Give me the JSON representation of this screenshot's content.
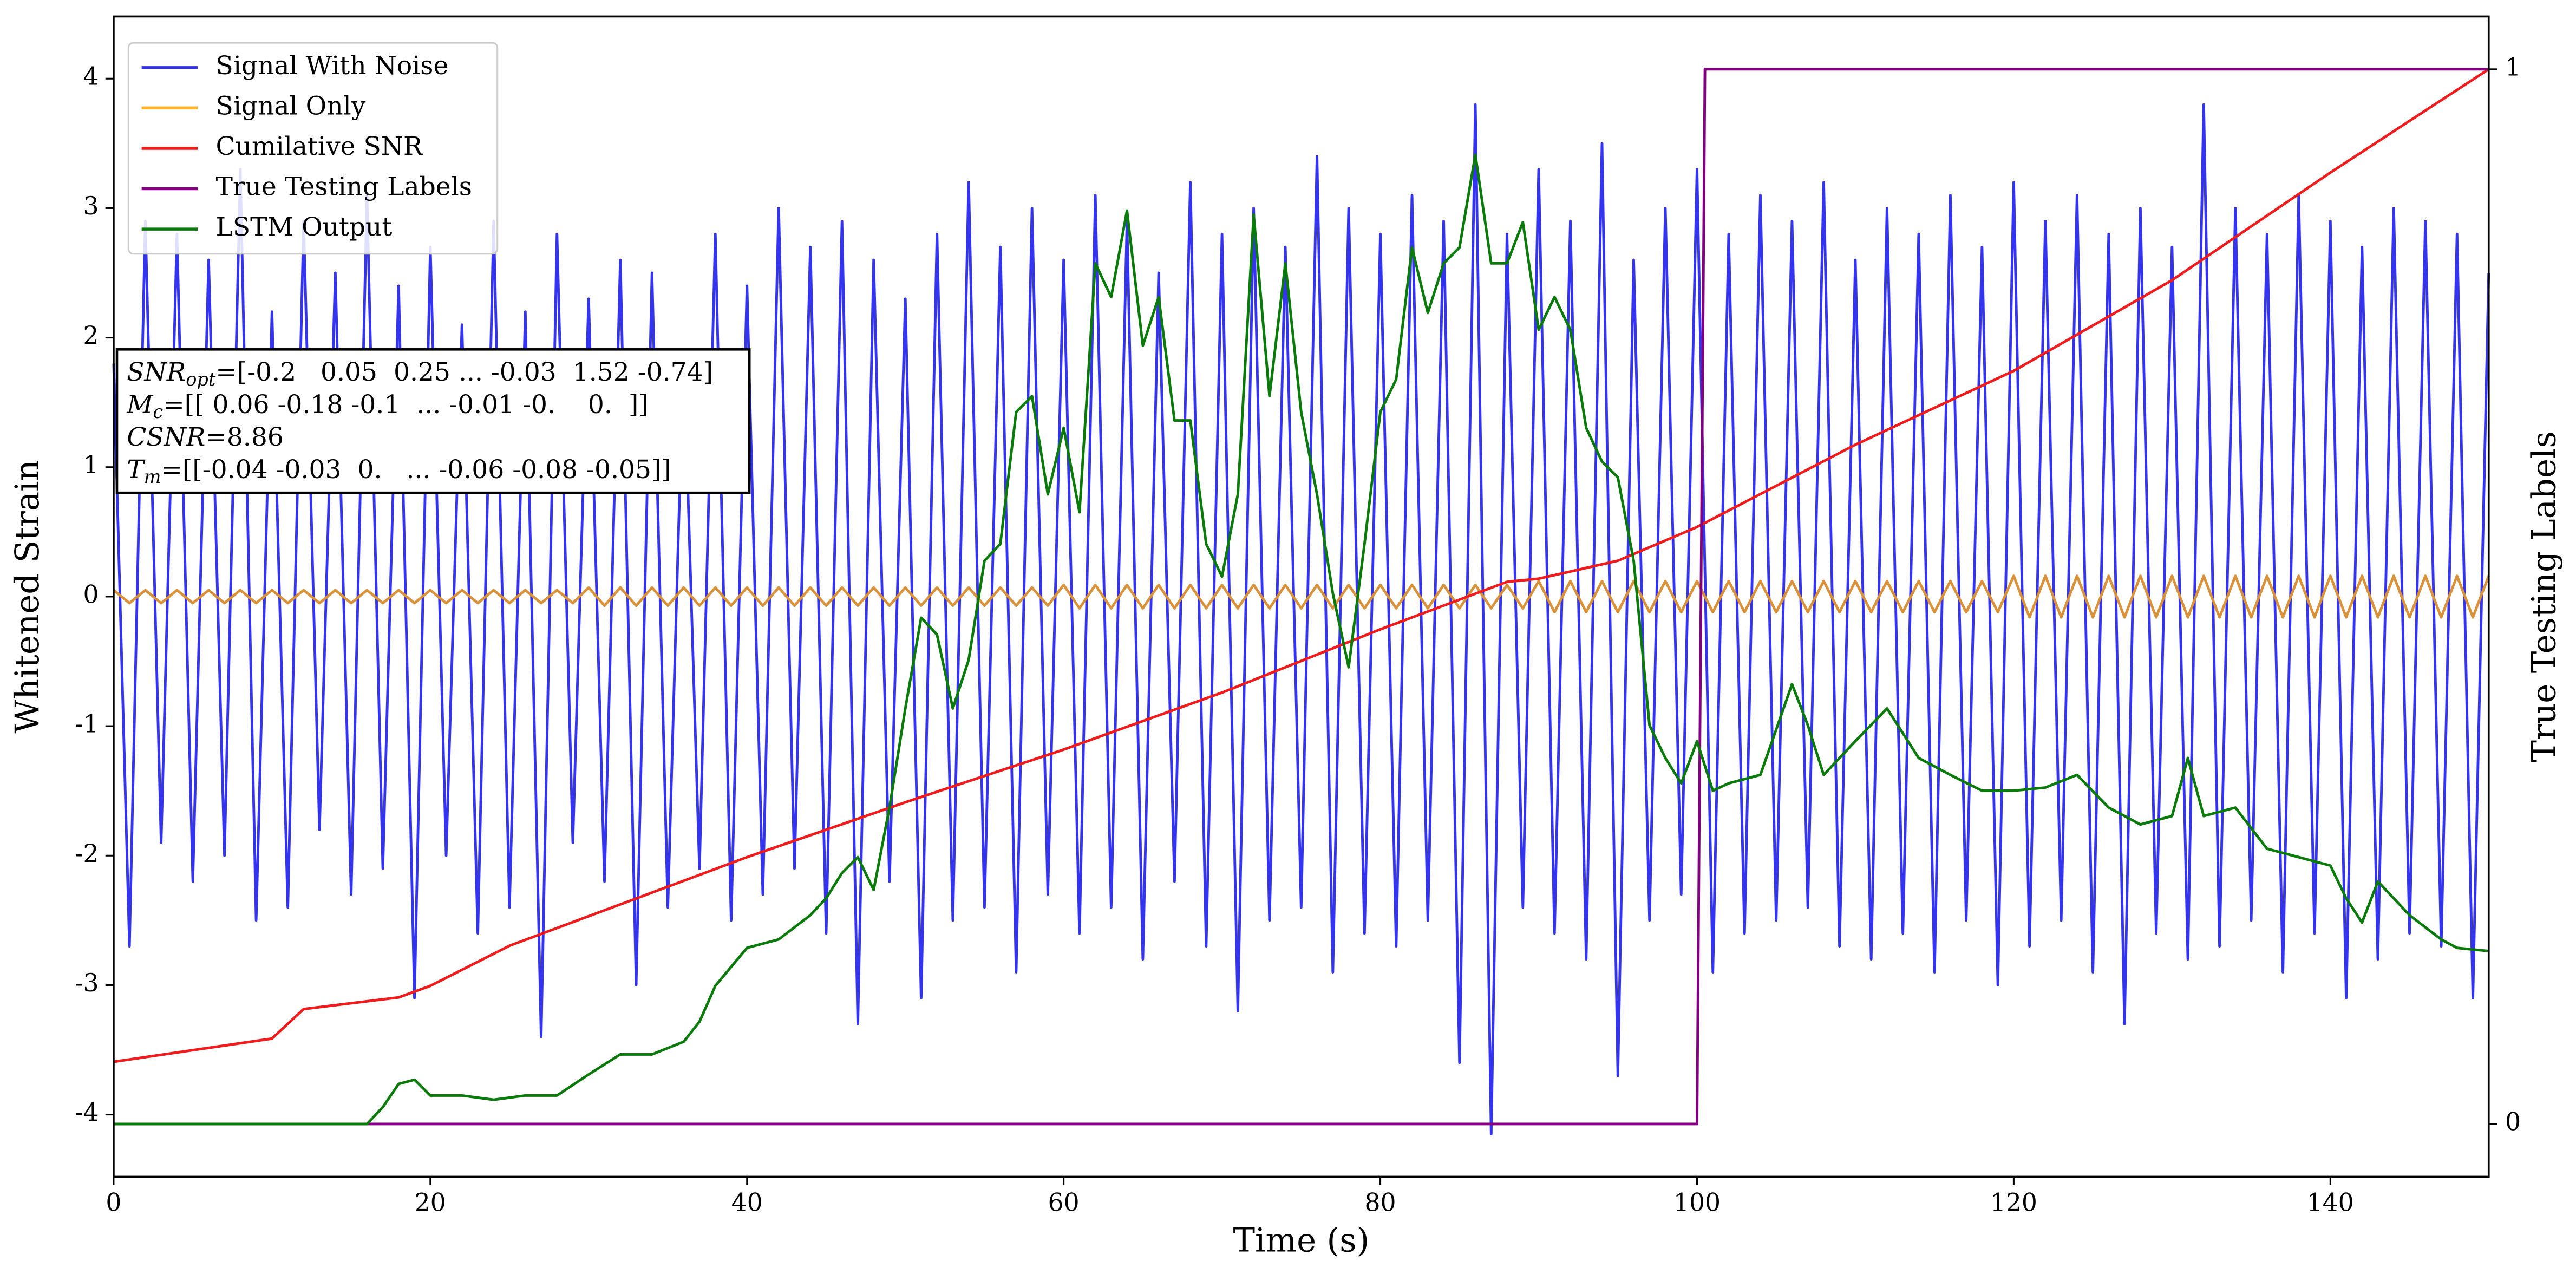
{
  "chart_data": {
    "type": "line",
    "xlabel": "Time (s)",
    "ylabel": "Whitened Strain",
    "y2label": "True Testing Labels",
    "xlim": [
      0,
      150
    ],
    "ylim": [
      -4.48,
      4.48
    ],
    "y2lim": [
      -0.05,
      1.05
    ],
    "xticks": [
      0,
      20,
      40,
      60,
      80,
      100,
      120,
      140
    ],
    "yticks": [
      -4,
      -3,
      -2,
      -1,
      0,
      1,
      2,
      3,
      4
    ],
    "y2ticks": [
      0,
      1
    ],
    "legend": "upper left",
    "x": [
      0,
      1,
      2,
      3,
      4,
      5,
      6,
      7,
      8,
      9,
      10,
      11,
      12,
      13,
      14,
      15,
      16,
      17,
      18,
      19,
      20,
      21,
      22,
      23,
      24,
      25,
      26,
      27,
      28,
      29,
      30,
      31,
      32,
      33,
      34,
      35,
      36,
      37,
      38,
      39,
      40,
      41,
      42,
      43,
      44,
      45,
      46,
      47,
      48,
      49,
      50,
      51,
      52,
      53,
      54,
      55,
      56,
      57,
      58,
      59,
      60,
      61,
      62,
      63,
      64,
      65,
      66,
      67,
      68,
      69,
      70,
      71,
      72,
      73,
      74,
      75,
      76,
      77,
      78,
      79,
      80,
      81,
      82,
      83,
      84,
      85,
      86,
      87,
      88,
      89,
      90,
      91,
      92,
      93,
      94,
      95,
      96,
      97,
      98,
      99,
      100,
      101,
      102,
      103,
      104,
      105,
      106,
      107,
      108,
      109,
      110,
      111,
      112,
      113,
      114,
      115,
      116,
      117,
      118,
      119,
      120,
      121,
      122,
      123,
      124,
      125,
      126,
      127,
      128,
      129,
      130,
      131,
      132,
      133,
      134,
      135,
      136,
      137,
      138,
      139,
      140,
      141,
      142,
      143,
      144,
      145,
      146,
      147,
      148,
      149,
      150
    ],
    "series": [
      {
        "name": "Signal With Noise",
        "color": "#3434ee",
        "legend_color": "#3434ee",
        "values": [
          1.8,
          -2.7,
          2.9,
          -1.9,
          2.8,
          -2.2,
          2.6,
          -2.0,
          3.3,
          -2.5,
          2.2,
          -2.4,
          2.9,
          -1.8,
          2.5,
          -2.3,
          3.1,
          -2.1,
          2.4,
          -3.1,
          2.7,
          -2.0,
          2.1,
          -2.6,
          2.9,
          -2.4,
          2.2,
          -3.4,
          2.8,
          -1.9,
          2.3,
          -2.2,
          2.6,
          -3.0,
          2.5,
          -2.4,
          1.9,
          -2.1,
          2.8,
          -2.5,
          2.4,
          -2.3,
          3.0,
          -2.1,
          2.7,
          -2.6,
          2.9,
          -3.3,
          2.6,
          -2.2,
          2.3,
          -3.1,
          2.8,
          -2.5,
          3.2,
          -2.4,
          2.7,
          -2.9,
          3.0,
          -2.3,
          2.6,
          -2.6,
          3.1,
          -2.4,
          2.9,
          -2.8,
          2.5,
          -2.2,
          3.2,
          -2.7,
          2.8,
          -3.2,
          3.0,
          -2.5,
          2.7,
          -2.4,
          3.4,
          -2.9,
          3.0,
          -2.6,
          2.8,
          -2.7,
          3.1,
          -2.5,
          2.9,
          -3.6,
          3.8,
          -4.15,
          2.8,
          -2.4,
          3.3,
          -2.6,
          2.9,
          -2.8,
          3.5,
          -3.7,
          2.6,
          -2.5,
          3.0,
          -2.3,
          3.3,
          -2.9,
          2.8,
          -2.6,
          3.1,
          -2.5,
          2.9,
          -2.4,
          3.2,
          -2.7,
          2.6,
          -2.8,
          3.0,
          -2.6,
          2.8,
          -2.9,
          3.1,
          -2.5,
          2.7,
          -3.0,
          3.2,
          -2.7,
          2.9,
          -2.5,
          3.1,
          -2.9,
          2.8,
          -3.3,
          3.0,
          -2.6,
          2.7,
          -2.8,
          3.8,
          -2.7,
          3.0,
          -2.5,
          2.8,
          -2.9,
          3.1,
          -2.6,
          2.9,
          -3.1,
          2.7,
          -2.8,
          3.0,
          -2.6,
          2.9,
          -2.7,
          2.8,
          -3.1,
          2.5
        ]
      },
      {
        "name": "Signal Only",
        "color": "#d9913a",
        "legend_color": "#ffb330",
        "values": [
          0.05,
          -0.05,
          0.05,
          -0.05,
          0.05,
          -0.05,
          0.05,
          -0.05,
          0.05,
          -0.05,
          0.05,
          -0.05,
          0.05,
          -0.05,
          0.05,
          -0.05,
          0.05,
          -0.05,
          0.05,
          -0.05,
          0.05,
          -0.05,
          0.05,
          -0.05,
          0.05,
          -0.05,
          0.05,
          -0.05,
          0.05,
          -0.05,
          0.07,
          -0.07,
          0.07,
          -0.07,
          0.07,
          -0.07,
          0.07,
          -0.07,
          0.07,
          -0.07,
          0.07,
          -0.07,
          0.07,
          -0.07,
          0.07,
          -0.07,
          0.07,
          -0.07,
          0.07,
          -0.07,
          0.07,
          -0.07,
          0.07,
          -0.07,
          0.07,
          -0.07,
          0.07,
          -0.07,
          0.07,
          -0.07,
          0.09,
          -0.09,
          0.09,
          -0.09,
          0.09,
          -0.09,
          0.09,
          -0.09,
          0.09,
          -0.09,
          0.09,
          -0.09,
          0.09,
          -0.09,
          0.09,
          -0.09,
          0.09,
          -0.09,
          0.09,
          -0.09,
          0.09,
          -0.09,
          0.09,
          -0.09,
          0.09,
          -0.09,
          0.09,
          -0.09,
          0.09,
          -0.09,
          0.12,
          -0.12,
          0.12,
          -0.12,
          0.12,
          -0.12,
          0.12,
          -0.12,
          0.12,
          -0.12,
          0.12,
          -0.12,
          0.12,
          -0.12,
          0.12,
          -0.12,
          0.12,
          -0.12,
          0.12,
          -0.12,
          0.12,
          -0.12,
          0.12,
          -0.12,
          0.12,
          -0.12,
          0.12,
          -0.12,
          0.12,
          -0.12,
          0.16,
          -0.16,
          0.16,
          -0.16,
          0.16,
          -0.16,
          0.16,
          -0.16,
          0.16,
          -0.16,
          0.16,
          -0.16,
          0.16,
          -0.16,
          0.16,
          -0.16,
          0.16,
          -0.16,
          0.16,
          -0.16,
          0.16,
          -0.16,
          0.16,
          -0.16,
          0.16,
          -0.16,
          0.16,
          -0.16,
          0.16,
          -0.16,
          0.16
        ]
      },
      {
        "name": "Cumilative SNR",
        "color": "#ee1c1c",
        "legend_color": "#ee1c1c",
        "axis": "y2",
        "x": [
          0,
          10,
          12,
          18,
          20,
          25,
          30,
          40,
          50,
          60,
          70,
          80,
          88,
          90,
          95,
          100,
          110,
          120,
          130,
          140,
          150
        ],
        "values": [
          0.059,
          0.081,
          0.109,
          0.12,
          0.131,
          0.169,
          0.197,
          0.253,
          0.305,
          0.355,
          0.409,
          0.469,
          0.514,
          0.517,
          0.534,
          0.566,
          0.644,
          0.714,
          0.8,
          0.902,
          1.0
        ]
      },
      {
        "name": "True Testing Labels",
        "color": "#800080",
        "legend_color": "#800080",
        "axis": "y2",
        "x": [
          0,
          100,
          100.5,
          150
        ],
        "values": [
          0,
          0,
          1,
          1
        ]
      },
      {
        "name": "LSTM Output",
        "color": "#0a7a0a",
        "legend_color": "#0a7a0a",
        "axis": "y2",
        "x": [
          0,
          16,
          17,
          18,
          19,
          20,
          22,
          24,
          26,
          28,
          30,
          32,
          34,
          36,
          37,
          38,
          40,
          42,
          44,
          45,
          46,
          47,
          48,
          49,
          50,
          51,
          52,
          53,
          54,
          55,
          56,
          57,
          58,
          59,
          60,
          61,
          62,
          63,
          64,
          65,
          66,
          67,
          68,
          69,
          70,
          71,
          72,
          73,
          74,
          75,
          76,
          77,
          78,
          79,
          80,
          81,
          82,
          83,
          84,
          85,
          86,
          87,
          88,
          89,
          90,
          91,
          92,
          93,
          94,
          95,
          96,
          97,
          98,
          99,
          100,
          101,
          102,
          104,
          106,
          107,
          108,
          110,
          112,
          114,
          116,
          118,
          120,
          122,
          124,
          126,
          128,
          130,
          131,
          132,
          134,
          136,
          138,
          140,
          141,
          142,
          143,
          145,
          147,
          148,
          150
        ],
        "values": [
          0,
          0,
          0.016,
          0.038,
          0.042,
          0.027,
          0.027,
          0.023,
          0.027,
          0.027,
          0.047,
          0.066,
          0.066,
          0.078,
          0.097,
          0.131,
          0.167,
          0.175,
          0.198,
          0.214,
          0.238,
          0.253,
          0.222,
          0.3,
          0.394,
          0.48,
          0.464,
          0.394,
          0.44,
          0.534,
          0.55,
          0.675,
          0.69,
          0.597,
          0.66,
          0.58,
          0.816,
          0.784,
          0.866,
          0.738,
          0.784,
          0.667,
          0.667,
          0.55,
          0.519,
          0.597,
          0.862,
          0.69,
          0.816,
          0.675,
          0.597,
          0.503,
          0.433,
          0.55,
          0.675,
          0.706,
          0.831,
          0.769,
          0.816,
          0.831,
          0.919,
          0.816,
          0.816,
          0.855,
          0.753,
          0.784,
          0.753,
          0.66,
          0.628,
          0.613,
          0.534,
          0.378,
          0.347,
          0.323,
          0.363,
          0.316,
          0.323,
          0.331,
          0.417,
          0.378,
          0.331,
          0.363,
          0.394,
          0.347,
          0.331,
          0.316,
          0.316,
          0.319,
          0.331,
          0.3,
          0.284,
          0.292,
          0.347,
          0.292,
          0.3,
          0.261,
          0.253,
          0.245,
          0.214,
          0.191,
          0.23,
          0.198,
          0.175,
          0.167,
          0.164
        ]
      }
    ],
    "annotation": [
      {
        "var": "SNR",
        "sub": "opt",
        "text": "=[-0.2   0.05  0.25 ... -0.03  1.52 -0.74]"
      },
      {
        "var": "M",
        "sub": "c",
        "text": "=[[ 0.06 -0.18 -0.1  ... -0.01 -0.    0.  ]]"
      },
      {
        "var": "CSNR",
        "text": "=8.86"
      },
      {
        "var": "T",
        "sub": "m",
        "text": "=[[-0.04 -0.03  0.   ... -0.06 -0.08 -0.05]]"
      }
    ]
  }
}
